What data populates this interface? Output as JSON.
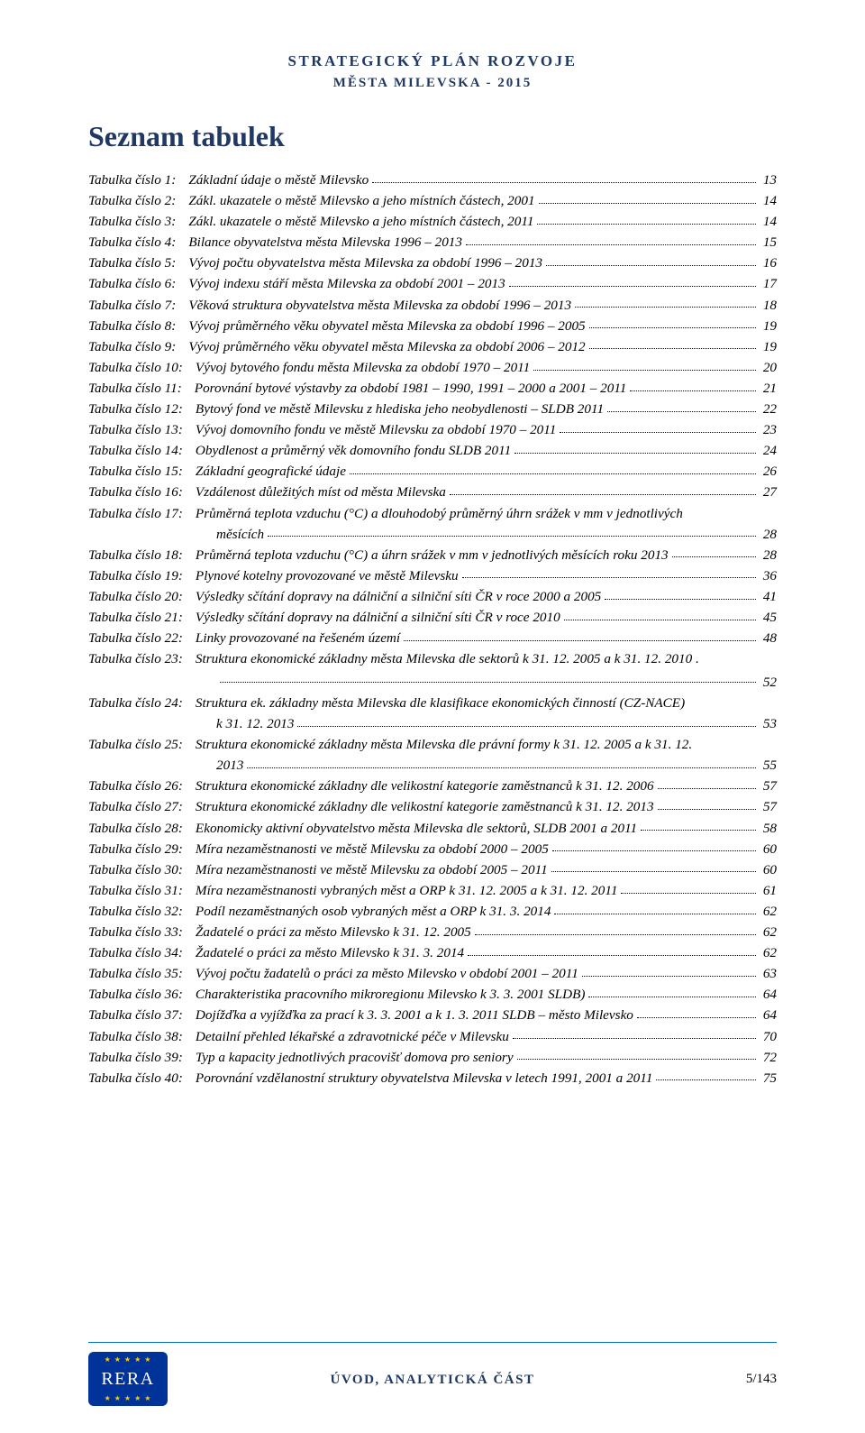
{
  "colors": {
    "heading": "#1f3864",
    "rule": "#0070c0",
    "text": "#000000",
    "logo_bg": "#003399",
    "logo_star": "#ffcc00",
    "logo_text": "#ffffff",
    "background": "#ffffff"
  },
  "typography": {
    "body_family": "Times New Roman",
    "body_size_pt": 11,
    "heading_size_pt": 24,
    "toc_italic": true
  },
  "header": {
    "line1": "STRATEGICKÝ PLÁN ROZVOJE",
    "line2": "MĚSTA MILEVSKA - 2015"
  },
  "section_title": "Seznam tabulek",
  "toc": [
    {
      "label": "Tabulka číslo 1:",
      "desc": "Základní údaje o městě Milevsko",
      "page": "13"
    },
    {
      "label": "Tabulka číslo 2:",
      "desc": "Zákl. ukazatele o městě Milevsko a jeho místních částech, 2001",
      "page": "14"
    },
    {
      "label": "Tabulka číslo 3:",
      "desc": "Zákl. ukazatele o městě Milevsko a jeho místních částech, 2011",
      "page": "14"
    },
    {
      "label": "Tabulka číslo 4:",
      "desc": "Bilance obyvatelstva města Milevska 1996 – 2013",
      "page": "15"
    },
    {
      "label": "Tabulka číslo 5:",
      "desc": "Vývoj počtu obyvatelstva města Milevska za období 1996 – 2013",
      "page": "16"
    },
    {
      "label": "Tabulka číslo 6:",
      "desc": "Vývoj indexu stáří města Milevska za období 2001 – 2013",
      "page": "17"
    },
    {
      "label": "Tabulka číslo 7:",
      "desc": "Věková struktura obyvatelstva města Milevska za období 1996 – 2013",
      "page": "18"
    },
    {
      "label": "Tabulka číslo 8:",
      "desc": "Vývoj průměrného věku obyvatel města Milevska za období 1996 – 2005",
      "page": "19"
    },
    {
      "label": "Tabulka číslo 9:",
      "desc": "Vývoj průměrného věku obyvatel města Milevska za období 2006 – 2012",
      "page": "19"
    },
    {
      "label": "Tabulka číslo 10:",
      "desc": "Vývoj bytového fondu města Milevska za období 1970 – 2011",
      "page": "20"
    },
    {
      "label": "Tabulka číslo 11:",
      "desc": "Porovnání bytové výstavby za období 1981 – 1990, 1991 – 2000 a 2001 – 2011",
      "page": "21"
    },
    {
      "label": "Tabulka číslo 12:",
      "desc": "Bytový fond ve městě Milevsku z hlediska jeho neobydlenosti – SLDB 2011",
      "page": "22"
    },
    {
      "label": "Tabulka číslo 13:",
      "desc": "Vývoj domovního fondu ve městě Milevsku za období 1970 – 2011",
      "page": "23"
    },
    {
      "label": "Tabulka číslo 14:",
      "desc": "Obydlenost a průměrný věk domovního fondu SLDB 2011",
      "page": "24"
    },
    {
      "label": "Tabulka číslo 15:",
      "desc": "Základní geografické údaje",
      "page": "26"
    },
    {
      "label": "Tabulka číslo 16:",
      "desc": "Vzdálenost důležitých míst od města Milevska",
      "page": "27"
    },
    {
      "label": "Tabulka číslo 17:",
      "desc": "Průměrná teplota vzduchu (°C) a dlouhodobý průměrný úhrn srážek v mm v jednotlivých",
      "cont": "měsících",
      "page": "28"
    },
    {
      "label": "Tabulka číslo 18:",
      "desc": "Průměrná teplota vzduchu (°C) a úhrn srážek v mm v jednotlivých měsících roku 2013",
      "page": "28"
    },
    {
      "label": "Tabulka číslo 19:",
      "desc": "Plynové kotelny provozované ve městě Milevsku",
      "page": "36"
    },
    {
      "label": "Tabulka číslo 20:",
      "desc": "Výsledky sčítání dopravy na dálniční a silniční síti ČR v roce 2000 a 2005",
      "page": "41"
    },
    {
      "label": "Tabulka číslo 21:",
      "desc": "Výsledky sčítání dopravy na dálniční a silniční síti ČR v roce 2010",
      "page": "45"
    },
    {
      "label": "Tabulka číslo 22:",
      "desc": "Linky provozované na řešeném území",
      "page": "48"
    },
    {
      "label": "Tabulka číslo 23:",
      "desc": "Struktura ekonomické základny města Milevska dle sektorů k 31. 12. 2005 a k 31. 12. 2010 .",
      "cont": "",
      "page": "52"
    },
    {
      "label": "Tabulka číslo 24:",
      "desc": "Struktura ek. základny města Milevska dle klasifikace ekonomických činností (CZ-NACE)",
      "cont": "k 31. 12. 2013",
      "page": "53"
    },
    {
      "label": "Tabulka číslo 25:",
      "desc": "Struktura ekonomické základny města Milevska dle právní formy k 31. 12. 2005 a k 31. 12.",
      "cont": "2013",
      "page": "55"
    },
    {
      "label": "Tabulka číslo 26:",
      "desc": "Struktura ekonomické základny dle velikostní kategorie zaměstnanců k 31. 12. 2006",
      "page": "57"
    },
    {
      "label": "Tabulka číslo 27:",
      "desc": "Struktura ekonomické základny dle velikostní kategorie zaměstnanců k 31. 12. 2013",
      "page": "57"
    },
    {
      "label": "Tabulka číslo 28:",
      "desc": "Ekonomicky aktivní obyvatelstvo města Milevska dle sektorů, SLDB 2001 a 2011",
      "page": "58"
    },
    {
      "label": "Tabulka číslo 29:",
      "desc": "Míra nezaměstnanosti ve městě Milevsku za období 2000 – 2005",
      "page": "60"
    },
    {
      "label": "Tabulka číslo 30:",
      "desc": "Míra nezaměstnanosti ve městě Milevsku za období 2005 – 2011",
      "page": "60"
    },
    {
      "label": "Tabulka číslo 31:",
      "desc": "Míra nezaměstnanosti vybraných měst a ORP k 31. 12. 2005  a k 31. 12. 2011",
      "page": "61"
    },
    {
      "label": "Tabulka číslo 32:",
      "desc": "Podíl nezaměstnaných osob vybraných měst a ORP k 31. 3. 2014",
      "page": "62"
    },
    {
      "label": "Tabulka číslo 33:",
      "desc": "Žadatelé o práci za město Milevsko k 31. 12. 2005",
      "page": "62"
    },
    {
      "label": "Tabulka číslo 34:",
      "desc": "Žadatelé o práci za město Milevsko k 31. 3. 2014",
      "page": "62"
    },
    {
      "label": "Tabulka číslo 35:",
      "desc": "Vývoj počtu žadatelů o práci za město Milevsko v období 2001 – 2011",
      "page": "63"
    },
    {
      "label": "Tabulka číslo 36:",
      "desc": "Charakteristika pracovního mikroregionu Milevsko k 3. 3. 2001 SLDB)",
      "page": "64"
    },
    {
      "label": "Tabulka číslo 37:",
      "desc": "Dojížďka a vyjížďka za prací k 3. 3. 2001 a k 1. 3. 2011 SLDB – město Milevsko",
      "page": "64"
    },
    {
      "label": "Tabulka číslo 38:",
      "desc": "Detailní přehled lékařské a zdravotnické péče v Milevsku",
      "page": "70"
    },
    {
      "label": "Tabulka číslo 39:",
      "desc": "Typ a kapacity jednotlivých pracovišť domova pro seniory",
      "page": "72"
    },
    {
      "label": "Tabulka číslo 40:",
      "desc": "Porovnání vzdělanostní struktury obyvatelstva Milevska v letech 1991, 2001 a 2011",
      "page": "75"
    }
  ],
  "footer": {
    "center": "ÚVOD, ANALYTICKÁ ČÁST",
    "page": "5/143",
    "logo_text": "RERA"
  }
}
